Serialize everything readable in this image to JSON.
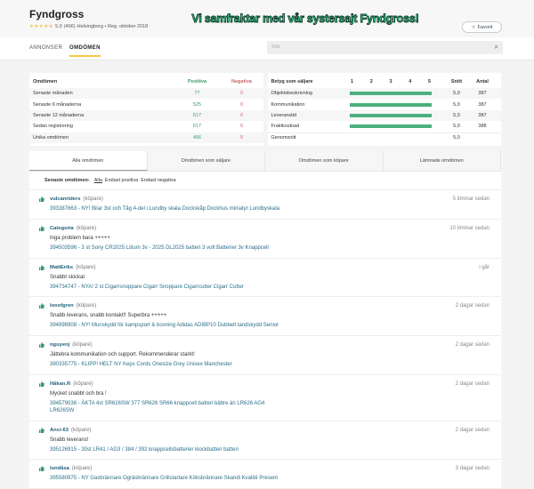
{
  "header": {
    "title": "Fyndgross",
    "stars": "★★★★★",
    "rating": "5,0",
    "count": "(466)",
    "location": "Helsingborg • Reg. oktober 2018",
    "banner": "Vi samfraktar med vår systersajt Fyndgross!",
    "favorite": "Favorit"
  },
  "nav": {
    "tabs": [
      "ANNONSER",
      "OMDÖMEN"
    ],
    "search_placeholder": "Sök"
  },
  "reviews_summary": {
    "headers": [
      "Omdömen",
      "Positiva",
      "Negativa"
    ],
    "rows": [
      {
        "label": "Senaste månaden",
        "pos": "77",
        "neg": "0"
      },
      {
        "label": "Senaste 6 månaderna",
        "pos": "525",
        "neg": "0"
      },
      {
        "label": "Senaste 12 månaderna",
        "pos": "617",
        "neg": "0"
      },
      {
        "label": "Sedan registrering",
        "pos": "617",
        "neg": "0"
      },
      {
        "label": "Unika omdömen",
        "pos": "466",
        "neg": "0"
      }
    ]
  },
  "seller_rating": {
    "headers": [
      "Betyg som säljare",
      "Snitt",
      "Antal"
    ],
    "scale": [
      "1",
      "2",
      "3",
      "4",
      "5"
    ],
    "rows": [
      {
        "label": "Objektsbeskrivning",
        "score": 5.0,
        "avg": "5,0",
        "count": "387"
      },
      {
        "label": "Kommunikation",
        "score": 5.0,
        "avg": "5,0",
        "count": "387"
      },
      {
        "label": "Leveranstid",
        "score": 5.0,
        "avg": "5,0",
        "count": "387"
      },
      {
        "label": "Fraktkostnad",
        "score": 5.0,
        "avg": "5,0",
        "count": "388"
      }
    ],
    "average": {
      "label": "Genomsnitt",
      "avg": "5,0"
    }
  },
  "tabs": [
    "Alla omdömen",
    "Omdömen som säljare",
    "Omdömen som köpare",
    "Lämnade omdömen"
  ],
  "filter": {
    "label": "Senaste omdömen:",
    "options": [
      "Alla",
      "Endast positiva",
      "Endast negativa"
    ]
  },
  "colors": {
    "positive": "#3a9a6a",
    "negative": "#c76b6b",
    "bar": "#4caf7d",
    "accent": "#f2c94c"
  },
  "reviews": [
    {
      "user": "vulcanriders",
      "role": "(köpare)",
      "time": "5 timmar sedan",
      "comment": "",
      "item": "393387663 - NY! Bilar 3st och Tåg 4-del i Lundby skala Dockskåp Dockhus miniatyr Lundbyskala"
    },
    {
      "user": "Categoria",
      "role": "(köpare)",
      "time": "10 timmar sedan",
      "comment": "Inga problem bara +++++",
      "item": "394503596 - 3 st Sony CR2025 Litium 3v - 2025 DL2025 batteri 3 volt Batterier 3v Knappcell"
    },
    {
      "user": "MattEriks",
      "role": "(köpare)",
      "time": "i går",
      "comment": "Snabbt skickat",
      "item": "394734747 - NYA! 2 st Cigarrsnoppare Cigarr Snoppare Cigarrcutter Cigarr Cutter"
    },
    {
      "user": "looofgren",
      "role": "(köpare)",
      "time": "2 dagar sedan",
      "comment": "Snabb leverans, snabb kontakt!! Superbra +++++",
      "item": "394998908 - NY! Munskydd för kampsport & boxning Adidas ADIBP10 Dubbelt tandskydd Senior"
    },
    {
      "user": "nguyenj",
      "role": "(köpare)",
      "time": "2 dagar sedan",
      "comment": "Jättebra kommunikation och support. Rekommenderar starkt!",
      "item": "390335775 - KLIPP! HELT NY Keps Cords Onesize Grey Unisex Manchester"
    },
    {
      "user": "Håkan.R",
      "role": "(köpare)",
      "time": "2 dagar sedan",
      "comment": "Mycket snabbt och bra !",
      "item": "394579038 - ÄKTA 4st SR626SW 377 SR626 SR66 knappcell batteri bättre än LR626 AG4 LR626SW"
    },
    {
      "user": "Anci-63",
      "role": "(köpare)",
      "time": "2 dagar sedan",
      "comment": "Snabb leverans!",
      "item": "395126915 - 30st LR41 / AG3 / 384 / 392 knappcellsbatterier klockbatteri batteri"
    },
    {
      "user": "lundåsa",
      "role": "(köpare)",
      "time": "3 dagar sedan",
      "comment": "",
      "item": "395580975 - NY Gasbrännare Ogräsbrännare Grillstartare Köksbrännare Skandi Kvalité Present"
    }
  ]
}
